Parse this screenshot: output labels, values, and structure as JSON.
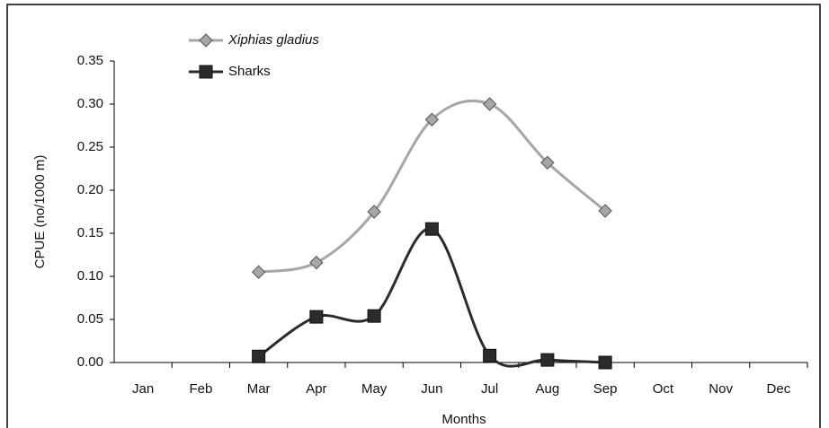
{
  "chart_data": {
    "type": "line",
    "x_label": "Months",
    "y_label": "CPUE (no/1000 m)",
    "categories": [
      "Jan",
      "Feb",
      "Mar",
      "Apr",
      "May",
      "Jun",
      "Jul",
      "Aug",
      "Sep",
      "Oct",
      "Nov",
      "Dec"
    ],
    "series": [
      {
        "name": "Xiphias gladius",
        "color": "#a6a6a6",
        "marker": "diamond",
        "values": [
          null,
          null,
          0.105,
          0.116,
          0.175,
          0.282,
          0.3,
          0.232,
          0.176,
          null,
          null,
          null
        ]
      },
      {
        "name": "Sharks",
        "color": "#2b2b2b",
        "marker": "square",
        "values": [
          null,
          null,
          0.007,
          0.053,
          0.054,
          0.155,
          0.008,
          0.003,
          0.0,
          null,
          null,
          null
        ]
      }
    ],
    "ylim": [
      0,
      0.35
    ],
    "yticks": [
      {
        "value": 0,
        "label": "0.00"
      },
      0.05,
      {
        "value": 0.1,
        "label": "0.10"
      },
      0.15,
      {
        "value": 0.2,
        "label": "0.20"
      },
      0.25,
      {
        "value": 0.3,
        "label": "0.30"
      },
      0.35
    ],
    "legend": "upper left",
    "smooth": true
  }
}
